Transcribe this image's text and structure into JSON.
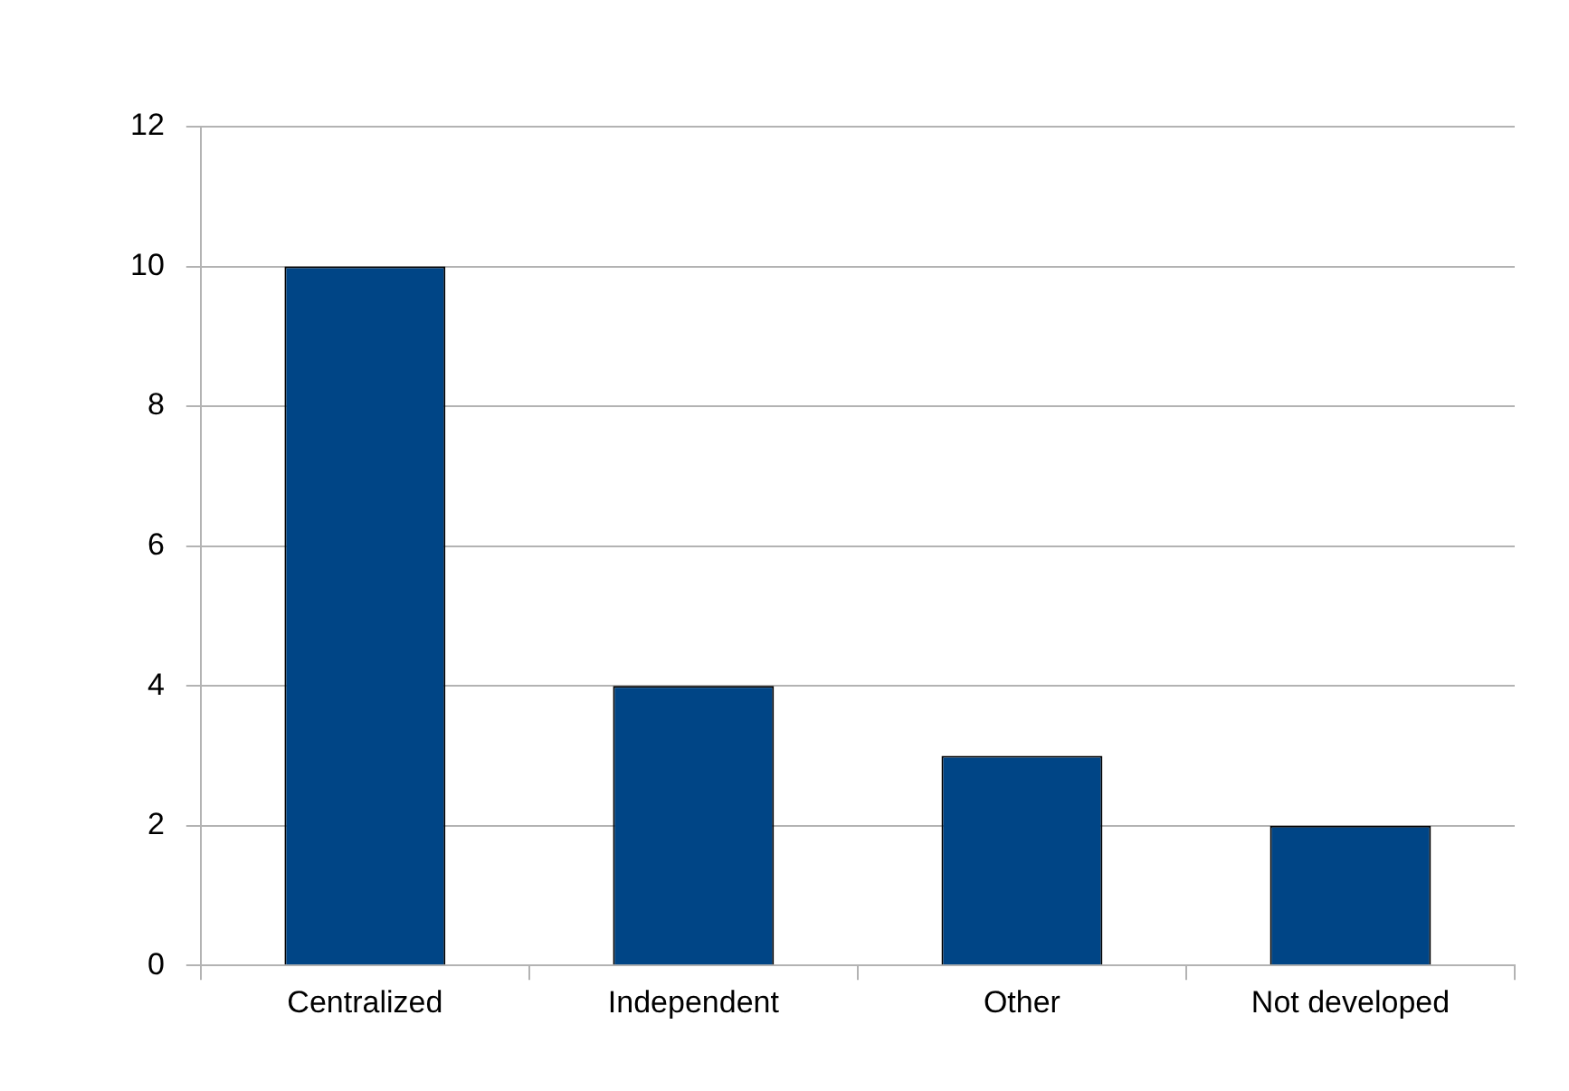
{
  "chart_data": {
    "type": "bar",
    "categories": [
      "Centralized",
      "Independent",
      "Other",
      "Not developed"
    ],
    "values": [
      10,
      4,
      3,
      2
    ],
    "color": "#004586",
    "ylim": [
      0,
      12
    ],
    "yticks": [
      0,
      2,
      4,
      6,
      8,
      10,
      12
    ],
    "grid": "y"
  }
}
